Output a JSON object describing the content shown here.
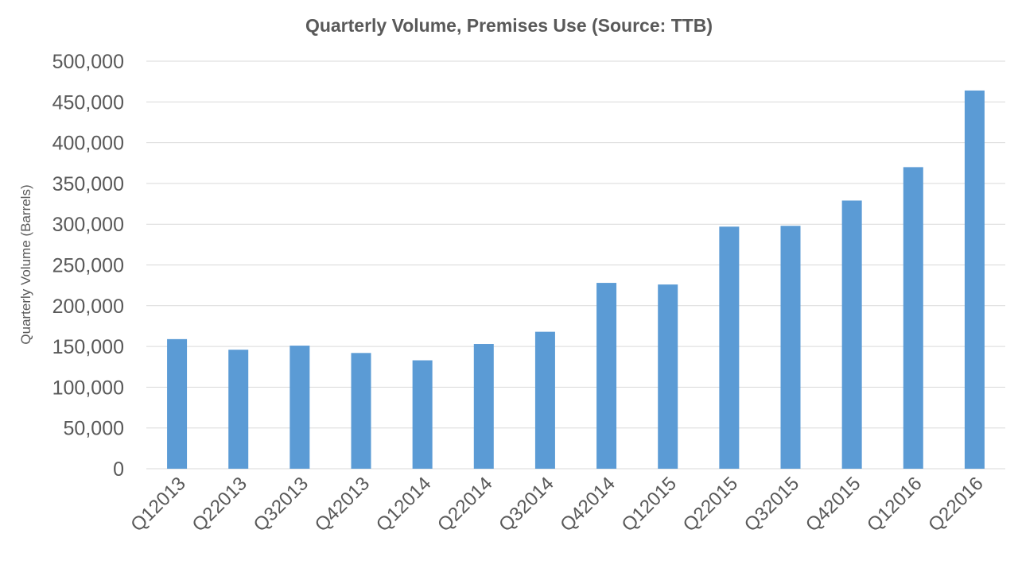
{
  "chart_data": {
    "type": "bar",
    "title": "Quarterly Volume, Premises Use (Source: TTB)",
    "xlabel": "",
    "ylabel": "Quarterly Volume (Barrels)",
    "categories": [
      "Q12013",
      "Q22013",
      "Q32013",
      "Q42013",
      "Q12014",
      "Q22014",
      "Q32014",
      "Q42014",
      "Q12015",
      "Q22015",
      "Q32015",
      "Q42015",
      "Q12016",
      "Q22016"
    ],
    "values": [
      159000,
      146000,
      151000,
      142000,
      133000,
      153000,
      168000,
      228000,
      226000,
      297000,
      298000,
      329000,
      370000,
      464000
    ],
    "ylim": [
      0,
      500000
    ],
    "yticks": [
      0,
      50000,
      100000,
      150000,
      200000,
      250000,
      300000,
      350000,
      400000,
      450000,
      500000
    ],
    "ytick_labels": [
      "0",
      "50,000",
      "100,000",
      "150,000",
      "200,000",
      "250,000",
      "300,000",
      "350,000",
      "400,000",
      "450,000",
      "500,000"
    ],
    "grid": true,
    "legend": "none",
    "bar_color": "#5b9bd5",
    "gridline_color": "#d9d9d9",
    "text_color": "#595959"
  }
}
